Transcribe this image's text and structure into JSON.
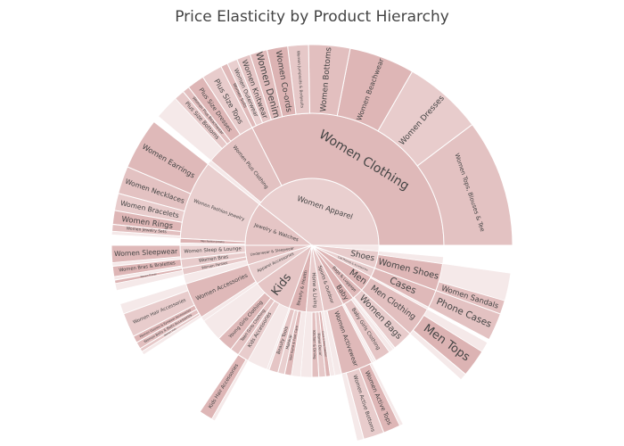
{
  "chart_data": {
    "type": "sunburst",
    "title": "Price Elasticity by Product Hierarchy",
    "base_color": "#d7a7a7",
    "children": [
      {
        "label": "Women Apparel",
        "value": 142,
        "children": [
          {
            "label": "Women Clothing",
            "value": 117,
            "children": [
              {
                "label": "Women Tops, Blouses & Tee",
                "value": 37
              },
              {
                "label": "Women Dresses",
                "value": 23
              },
              {
                "label": "Women Beachwear",
                "value": 19
              },
              {
                "label": "Women Bottoms",
                "value": 12
              },
              {
                "label": "Women Jumpsuits & Bodysuits",
                "value": 6
              },
              {
                "label": "Women Co-ords",
                "value": 6
              },
              {
                "label": "Women Denim",
                "value": 5
              },
              {
                "label": "Women Knitwear",
                "value": 4
              },
              {
                "label": "Women Outerwear",
                "value": 3
              },
              {
                "label": "Women Suits",
                "value": 2
              }
            ]
          },
          {
            "label": "Women Plus Clothing",
            "value": 23,
            "children": [
              {
                "label": "Plus Size Tops",
                "value": 6
              },
              {
                "label": "Plus Size Dresses",
                "value": 5
              },
              {
                "label": "Women Plus Beachwear",
                "value": 2
              },
              {
                "label": "Plus Size Bottoms",
                "value": 3
              },
              {
                "value": 7
              }
            ]
          },
          {
            "value": 2
          }
        ]
      },
      {
        "label": "Jewelry & Watches",
        "value": 38,
        "children": [
          {
            "label": "Women Fashion Jewelry",
            "value": 35,
            "children": [
              {
                "label": "Women Earrings",
                "value": 15
              },
              {
                "label": "Women Necklaces",
                "value": 8
              },
              {
                "label": "Women Bracelets",
                "value": 5
              },
              {
                "label": "Women Rings",
                "value": 4
              },
              {
                "label": "Women Jewelry Sets",
                "value": 2
              },
              {
                "value": 1
              }
            ]
          },
          {
            "label": "Men Fashion Jewelry",
            "value": 2
          },
          {
            "value": 1
          }
        ]
      },
      {
        "label": "Underwear & Sleepwear",
        "value": 17,
        "children": [
          {
            "label": "Women Sleep & Lounge",
            "value": 6,
            "children": [
              {
                "label": "Women Sleepwear",
                "value": 5
              },
              {
                "value": 1
              }
            ]
          },
          {
            "label": "Women Bras",
            "value": 4,
            "children": [
              {
                "label": "Women Bras & Bralettes",
                "value": 3
              },
              {
                "value": 1
              }
            ]
          },
          {
            "label": "Women Panties",
            "value": 3,
            "children": [
              {
                "label": "Women Thongs",
                "value": 1
              },
              {
                "value": 2
              }
            ]
          },
          {
            "value": 4
          }
        ]
      },
      {
        "label": "Apparel Accessories",
        "value": 18,
        "children": [
          {
            "label": "Women Accessories",
            "value": 16,
            "children": [
              {
                "value": 3
              },
              {
                "label": "Women Hair Accessories",
                "value": 7
              },
              {
                "label": "Women Glasses & Eyewear Accessories",
                "value": 2
              },
              {
                "label": "Women Belts & Belts Accessories",
                "value": 2
              },
              {
                "label": "Women Hats",
                "value": 1
              },
              {
                "value": 1
              }
            ]
          },
          {
            "value": 2
          }
        ]
      },
      {
        "label": "Kids",
        "value": 35,
        "children": [
          {
            "value": 10
          },
          {
            "label": "Young Girls Clothing",
            "value": 7
          },
          {
            "label": "Teen Girls Clothing",
            "value": 4
          },
          {
            "label": "Kids Accessories",
            "value": 5,
            "children": [
              {
                "label": "Kids Hair Accessories",
                "value": 4
              },
              {
                "value": 1
              }
            ]
          },
          {
            "value": 9
          }
        ]
      },
      {
        "label": "Beauty & Health",
        "value": 15,
        "children": [
          {
            "value": 1
          },
          {
            "label": "Beauty Tools",
            "value": 4
          },
          {
            "label": "Makeup",
            "value": 3
          },
          {
            "label": "Nail Hand & Foot Care",
            "value": 3
          },
          {
            "value": 4
          }
        ]
      },
      {
        "label": "Home & Living",
        "value": 15,
        "children": [
          {
            "value": 5
          },
          {
            "label": "Kitchen & Dining",
            "value": 3
          },
          {
            "label": "Home Decor",
            "value": 3
          },
          {
            "label": "Event & Party Supplies",
            "value": 2
          },
          {
            "value": 2
          }
        ]
      },
      {
        "label": "Sports & Outdoor",
        "value": 18,
        "children": [
          {
            "value": 3
          },
          {
            "label": "Women Activewear",
            "value": 14,
            "children": [
              {
                "value": 2
              },
              {
                "label": "Women Active Bottoms",
                "value": 6
              },
              {
                "label": "Women Active Tops",
                "value": 5
              },
              {
                "value": 1
              }
            ]
          },
          {
            "value": 1
          }
        ]
      },
      {
        "label": "Baby",
        "value": 10,
        "children": [
          {
            "value": 1
          },
          {
            "label": "Baby Girls Clothing",
            "value": 7
          },
          {
            "value": 2
          }
        ]
      },
      {
        "label": "Bags & Luggage",
        "value": 10,
        "children": [
          {
            "value": 1
          },
          {
            "label": "Women Bags",
            "value": 9
          }
        ]
      },
      {
        "label": "Men",
        "value": 14,
        "children": [
          {
            "label": "Men Clothing",
            "value": 13,
            "children": [
              {
                "value": 2
              },
              {
                "label": "Men Tops",
                "value": 8
              },
              {
                "value": 3
              }
            ]
          },
          {
            "value": 1
          }
        ]
      },
      {
        "label": "Cell Phones & Accessories",
        "value": 8,
        "children": [
          {
            "label": "Cases",
            "value": 8,
            "children": [
              {
                "label": "Phone Cases",
                "value": 8
              }
            ]
          }
        ]
      },
      {
        "label": "Shoes",
        "value": 15,
        "children": [
          {
            "label": "Women Shoes",
            "value": 12,
            "children": [
              {
                "label": "Women Sandals",
                "value": 4
              },
              {
                "value": 8
              }
            ]
          },
          {
            "value": 3
          }
        ]
      },
      {
        "value": 5
      }
    ]
  }
}
